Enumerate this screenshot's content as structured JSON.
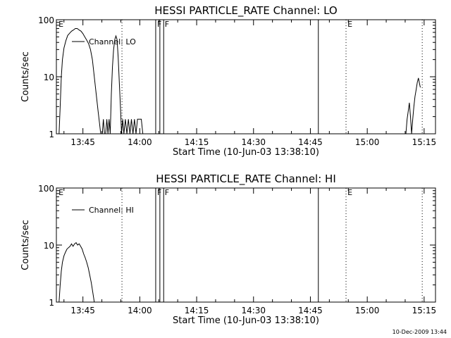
{
  "footer_timestamp": "10-Dec-2009 13:44",
  "chart_data": [
    {
      "type": "line",
      "title": "HESSI PARTICLE_RATE Channel: LO",
      "xlabel": "Start Time (10-Jun-03 13:38:10)",
      "ylabel": "Counts/sec",
      "yscale": "log",
      "ylim": [
        1,
        100
      ],
      "xlim_minutes_after_1338": [
        0,
        100
      ],
      "x_ticks": [
        {
          "t": 7,
          "label": "13:45"
        },
        {
          "t": 22,
          "label": "14:00"
        },
        {
          "t": 37,
          "label": "14:15"
        },
        {
          "t": 52,
          "label": "14:30"
        },
        {
          "t": 67,
          "label": "14:45"
        },
        {
          "t": 82,
          "label": "15:00"
        },
        {
          "t": 97,
          "label": "15:15"
        }
      ],
      "y_ticks": [
        {
          "v": 1,
          "label": "1"
        },
        {
          "v": 10,
          "label": "10"
        },
        {
          "v": 100,
          "label": "100"
        }
      ],
      "legend": "Channel: LO",
      "event_lines": [
        {
          "t": 17.3,
          "style": "dotted"
        },
        {
          "t": 26.2,
          "style": "solid"
        },
        {
          "t": 27.3,
          "style": "solid"
        },
        {
          "t": 28.3,
          "style": "solid"
        },
        {
          "t": 69.1,
          "style": "solid"
        },
        {
          "t": 76.4,
          "style": "dotted"
        },
        {
          "t": 96.5,
          "style": "dotted"
        }
      ],
      "event_labels": [
        {
          "t": 0.4,
          "label": "E"
        },
        {
          "t": 26.4,
          "label": "F"
        },
        {
          "t": 28.4,
          "label": "F"
        },
        {
          "t": 76.6,
          "label": "E"
        }
      ],
      "series": [
        {
          "points": [
            [
              0.7,
              1
            ],
            [
              1,
              3
            ],
            [
              1.3,
              10
            ],
            [
              1.6,
              20
            ],
            [
              2,
              32
            ],
            [
              2.5,
              43
            ],
            [
              3,
              53
            ],
            [
              3.5,
              58
            ],
            [
              4,
              63
            ],
            [
              4.5,
              66
            ],
            [
              5,
              70
            ],
            [
              5.5,
              70
            ],
            [
              6,
              66
            ],
            [
              6.5,
              63
            ],
            [
              7,
              57
            ],
            [
              7.5,
              50
            ],
            [
              8,
              44
            ],
            [
              8.5,
              38
            ],
            [
              9,
              30
            ],
            [
              9.5,
              20
            ],
            [
              10,
              10
            ],
            [
              10.5,
              5
            ],
            [
              11,
              2.5
            ],
            [
              11.4,
              1.5
            ],
            [
              11.7,
              1
            ],
            [
              12.1,
              1
            ],
            [
              12.4,
              1.8
            ],
            [
              12.7,
              1
            ],
            [
              13,
              1
            ],
            [
              13.3,
              1.8
            ],
            [
              13.6,
              1
            ],
            [
              13.9,
              1.8
            ],
            [
              14.2,
              1
            ],
            [
              14.5,
              5
            ],
            [
              14.8,
              15
            ],
            [
              15.1,
              30
            ],
            [
              15.4,
              45
            ],
            [
              15.7,
              52
            ],
            [
              16,
              45
            ],
            [
              16.3,
              22
            ],
            [
              16.6,
              8
            ],
            [
              16.9,
              3
            ],
            [
              17.2,
              1
            ],
            [
              17.5,
              1.8
            ],
            [
              17.8,
              1
            ],
            [
              18.2,
              1.8
            ],
            [
              18.6,
              1
            ],
            [
              19,
              1.8
            ],
            [
              19.4,
              1
            ],
            [
              19.8,
              1.8
            ],
            [
              20.2,
              1
            ],
            [
              20.6,
              1.8
            ],
            [
              21,
              1
            ],
            [
              21.4,
              1.8
            ],
            [
              21.8,
              1.8
            ],
            [
              22.4,
              1.8
            ],
            [
              22.8,
              1
            ]
          ]
        },
        {
          "points": [
            [
              92.2,
              1
            ],
            [
              92.5,
              1.8
            ],
            [
              92.8,
              2.5
            ],
            [
              93.1,
              3.5
            ],
            [
              93.4,
              2
            ],
            [
              93.7,
              1
            ],
            [
              94,
              1.8
            ],
            [
              94.3,
              3
            ],
            [
              94.6,
              4.5
            ],
            [
              94.9,
              6
            ],
            [
              95.2,
              8
            ],
            [
              95.5,
              9.5
            ],
            [
              95.8,
              7.5
            ],
            [
              96,
              6.5
            ]
          ]
        }
      ]
    },
    {
      "type": "line",
      "title": "HESSI PARTICLE_RATE Channel: HI",
      "xlabel": "Start Time (10-Jun-03 13:38:10)",
      "ylabel": "Counts/sec",
      "yscale": "log",
      "ylim": [
        1,
        100
      ],
      "xlim_minutes_after_1338": [
        0,
        100
      ],
      "x_ticks": [
        {
          "t": 7,
          "label": "13:45"
        },
        {
          "t": 22,
          "label": "14:00"
        },
        {
          "t": 37,
          "label": "14:15"
        },
        {
          "t": 52,
          "label": "14:30"
        },
        {
          "t": 67,
          "label": "14:45"
        },
        {
          "t": 82,
          "label": "15:00"
        },
        {
          "t": 97,
          "label": "15:15"
        }
      ],
      "y_ticks": [
        {
          "v": 1,
          "label": "1"
        },
        {
          "v": 10,
          "label": "10"
        },
        {
          "v": 100,
          "label": "100"
        }
      ],
      "legend": "Channel: HI",
      "event_lines": [
        {
          "t": 17.3,
          "style": "dotted"
        },
        {
          "t": 26.2,
          "style": "solid"
        },
        {
          "t": 27.3,
          "style": "solid"
        },
        {
          "t": 28.3,
          "style": "solid"
        },
        {
          "t": 69.1,
          "style": "solid"
        },
        {
          "t": 76.4,
          "style": "dotted"
        },
        {
          "t": 96.5,
          "style": "dotted"
        }
      ],
      "event_labels": [
        {
          "t": 0.4,
          "label": "E"
        },
        {
          "t": 26.4,
          "label": "F"
        },
        {
          "t": 28.4,
          "label": "F"
        },
        {
          "t": 76.6,
          "label": "E"
        }
      ],
      "series": [
        {
          "points": [
            [
              0.7,
              1
            ],
            [
              1,
              2
            ],
            [
              1.3,
              3.5
            ],
            [
              1.6,
              5
            ],
            [
              2,
              6.5
            ],
            [
              2.4,
              7.5
            ],
            [
              2.8,
              8.5
            ],
            [
              3.2,
              9
            ],
            [
              3.6,
              9.5
            ],
            [
              4,
              10.5
            ],
            [
              4.4,
              9.5
            ],
            [
              4.8,
              10.5
            ],
            [
              5.2,
              11
            ],
            [
              5.6,
              10
            ],
            [
              6,
              10.5
            ],
            [
              6.4,
              9.5
            ],
            [
              6.8,
              8.5
            ],
            [
              7.2,
              7
            ],
            [
              7.6,
              6
            ],
            [
              8,
              5
            ],
            [
              8.4,
              4
            ],
            [
              8.8,
              3
            ],
            [
              9.2,
              2.2
            ],
            [
              9.6,
              1.5
            ],
            [
              10,
              1
            ]
          ]
        }
      ]
    }
  ]
}
